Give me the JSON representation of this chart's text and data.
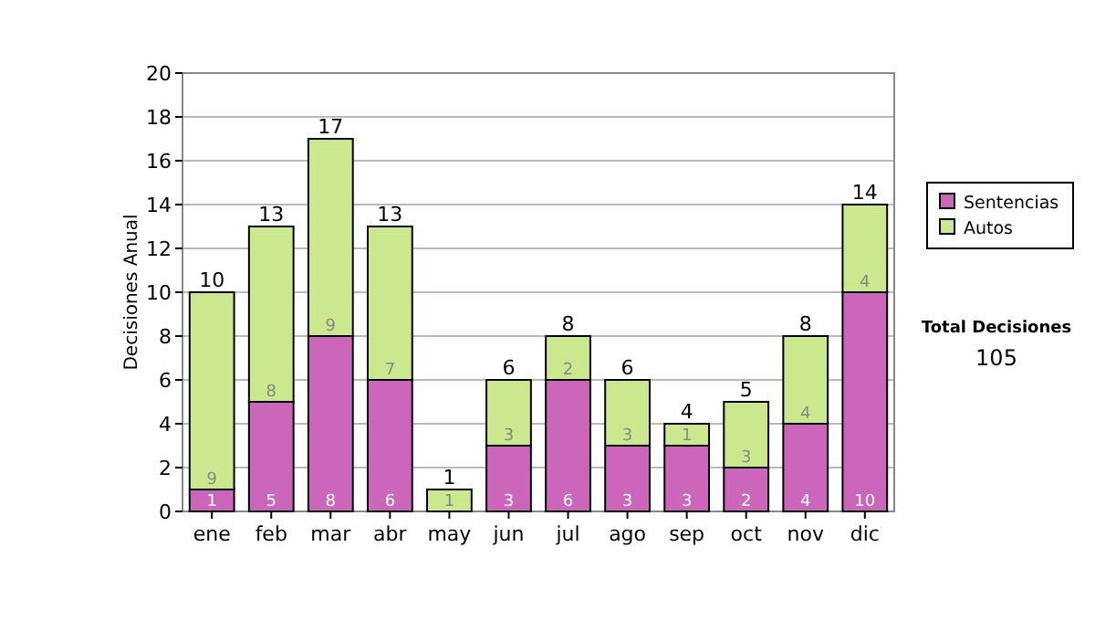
{
  "chart_data": {
    "type": "bar",
    "stacked": true,
    "ylabel": "Decisiones Anual",
    "categories": [
      "ene",
      "feb",
      "mar",
      "abr",
      "may",
      "jun",
      "jul",
      "ago",
      "sep",
      "oct",
      "nov",
      "dic"
    ],
    "series": [
      {
        "name": "Sentencias",
        "color": "#cc66bb",
        "values": [
          1,
          5,
          8,
          6,
          0,
          3,
          6,
          3,
          3,
          2,
          4,
          10
        ],
        "value_labels": [
          "1",
          "5",
          "8",
          "6",
          null,
          "3",
          "6",
          "3",
          "3",
          "2",
          "4",
          "10"
        ]
      },
      {
        "name": "Autos",
        "color": "#cce88f",
        "values": [
          9,
          8,
          9,
          7,
          1,
          3,
          2,
          3,
          1,
          3,
          4,
          4
        ],
        "value_labels": [
          "9",
          "8",
          "9",
          "7",
          "1",
          "3",
          "2",
          "3",
          "1",
          "3",
          "4",
          "4"
        ]
      }
    ],
    "totals": [
      "10",
      "13",
      "17",
      "13",
      "1",
      "6",
      "8",
      "6",
      "4",
      "5",
      "8",
      "14"
    ],
    "ylim": [
      0,
      20
    ],
    "yticks": [
      0,
      2,
      4,
      6,
      8,
      10,
      12,
      14,
      16,
      18,
      20
    ],
    "grid": "y",
    "legend": "right",
    "annotations": [
      "Total Decisiones",
      "105"
    ]
  }
}
